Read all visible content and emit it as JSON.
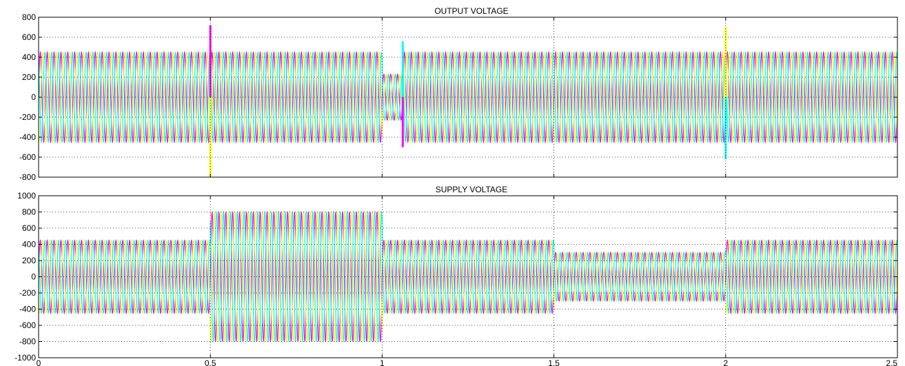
{
  "colors": {
    "phase_a": "#ff00ff",
    "phase_b": "#ffff00",
    "phase_c": "#00ffff",
    "grid": "#000000",
    "frame": "#000000"
  },
  "chart_data": [
    {
      "type": "line",
      "title": "OUTPUT VOLTAGE",
      "xlabel": "",
      "ylabel": "",
      "xlim": [
        0,
        2.5
      ],
      "ylim": [
        -800,
        800
      ],
      "yticks": [
        -800,
        -600,
        -400,
        -200,
        0,
        200,
        400,
        600,
        800
      ],
      "xticks": [
        0,
        0.5,
        1,
        1.5,
        2,
        2.5
      ],
      "show_xtick_labels": false,
      "grid": true,
      "grid_style": "dotted",
      "frequency_hz": 50,
      "phases": 3,
      "envelope": [
        {
          "x0": 0.0,
          "x1": 1.0,
          "amplitude": 450
        },
        {
          "x0": 1.0,
          "x1": 1.06,
          "amplitude": 230
        },
        {
          "x0": 1.06,
          "x1": 2.5,
          "amplitude": 450
        }
      ],
      "spikes": [
        {
          "x": 0.5,
          "y": 720
        },
        {
          "x": 0.5,
          "y": -800
        },
        {
          "x": 1.06,
          "y": 560
        },
        {
          "x": 1.06,
          "y": -500
        },
        {
          "x": 2.0,
          "y": 700
        },
        {
          "x": 2.0,
          "y": -620
        }
      ]
    },
    {
      "type": "line",
      "title": "SUPPLY VOLTAGE",
      "xlabel": "",
      "ylabel": "",
      "xlim": [
        0,
        2.5
      ],
      "ylim": [
        -1000,
        1000
      ],
      "yticks": [
        -1000,
        -800,
        -600,
        -400,
        -200,
        0,
        200,
        400,
        600,
        800,
        1000
      ],
      "xticks": [
        0,
        0.5,
        1,
        1.5,
        2,
        2.5
      ],
      "show_xtick_labels": true,
      "grid": true,
      "grid_style": "dotted",
      "frequency_hz": 50,
      "phases": 3,
      "envelope": [
        {
          "x0": 0.0,
          "x1": 0.5,
          "amplitude": 450
        },
        {
          "x0": 0.5,
          "x1": 1.0,
          "amplitude": 800
        },
        {
          "x0": 1.0,
          "x1": 1.5,
          "amplitude": 450
        },
        {
          "x0": 1.5,
          "x1": 2.0,
          "amplitude": 300
        },
        {
          "x0": 2.0,
          "x1": 2.5,
          "amplitude": 450
        }
      ],
      "spikes": []
    }
  ]
}
